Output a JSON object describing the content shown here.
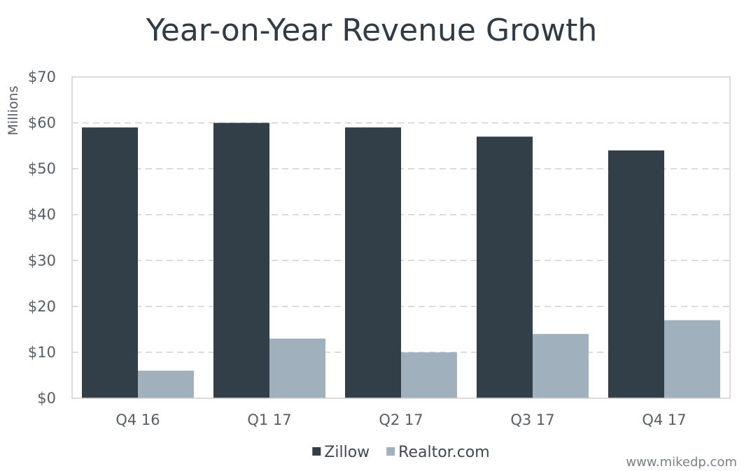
{
  "chart_data": {
    "type": "bar",
    "title": "Year-on-Year Revenue Growth",
    "ylabel": "Millions",
    "xlabel": "",
    "categories": [
      "Q4 16",
      "Q1 17",
      "Q2 17",
      "Q3 17",
      "Q4 17"
    ],
    "series": [
      {
        "name": "Zillow",
        "color": "#323e48",
        "values": [
          59,
          60,
          59,
          57,
          54
        ]
      },
      {
        "name": "Realtor.com",
        "color": "#a0b1bd",
        "values": [
          6,
          13,
          10,
          14,
          17
        ]
      }
    ],
    "ylim": [
      0,
      70
    ],
    "yticks": [
      0,
      10,
      20,
      30,
      40,
      50,
      60,
      70
    ],
    "ytick_labels": [
      "$0",
      "$10",
      "$20",
      "$30",
      "$40",
      "$50",
      "$60",
      "$70"
    ],
    "grid": true,
    "legend_position": "bottom-center"
  },
  "footer": {
    "watermark": "www.mikedp.com"
  },
  "colors": {
    "title": "#2f3b45",
    "axis_text": "#555e66",
    "grid": "#d0d0d0"
  }
}
